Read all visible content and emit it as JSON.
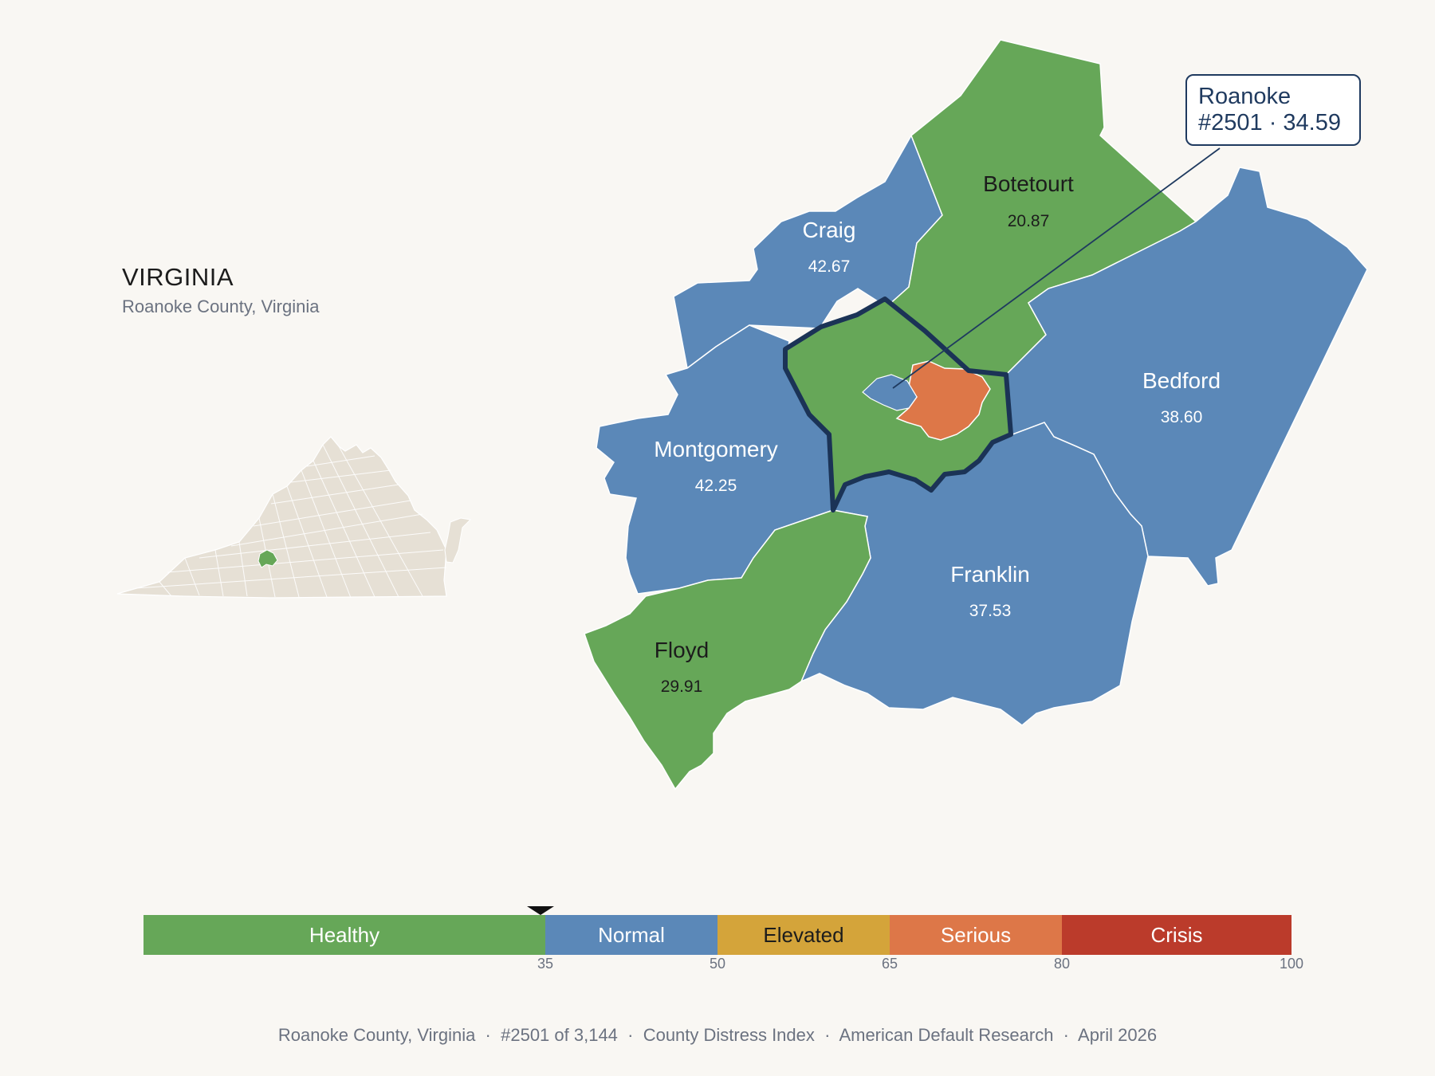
{
  "header": {
    "state_title": "VIRGINIA",
    "subtitle": "Roanoke County, Virginia"
  },
  "callout": {
    "line1": "Roanoke",
    "line2": "#2501 · 34.59"
  },
  "colors": {
    "healthy": "#66a758",
    "normal": "#5b88b8",
    "elevated": "#d4a43a",
    "serious": "#dd7748",
    "crisis": "#bb3b2b",
    "highlight_outline": "#1b3356",
    "inset_state": "#e6e0d5",
    "background": "#f9f7f3"
  },
  "counties": [
    {
      "name": "Botetourt",
      "value": "20.87",
      "category": "Healthy"
    },
    {
      "name": "Craig",
      "value": "42.67",
      "category": "Normal"
    },
    {
      "name": "Bedford",
      "value": "38.60",
      "category": "Normal"
    },
    {
      "name": "Montgomery",
      "value": "42.25",
      "category": "Normal"
    },
    {
      "name": "Franklin",
      "value": "37.53",
      "category": "Normal"
    },
    {
      "name": "Floyd",
      "value": "29.91",
      "category": "Healthy"
    }
  ],
  "focus_county": {
    "name": "Roanoke",
    "rank": "#2501",
    "score": 34.59,
    "category": "Healthy",
    "inner_city_category": "Serious"
  },
  "legend": {
    "segments": [
      {
        "label": "Healthy",
        "from": 0,
        "to": 35
      },
      {
        "label": "Normal",
        "from": 35,
        "to": 50
      },
      {
        "label": "Elevated",
        "from": 50,
        "to": 65
      },
      {
        "label": "Serious",
        "from": 65,
        "to": 80
      },
      {
        "label": "Crisis",
        "from": 80,
        "to": 100
      }
    ],
    "ticks": [
      "35",
      "50",
      "65",
      "80",
      "100"
    ],
    "marker_value": 34.59
  },
  "footer": {
    "text": "Roanoke County, Virginia  ·  #2501 of 3,144  ·  County Distress Index  ·  American Default Research  ·  April 2026"
  }
}
